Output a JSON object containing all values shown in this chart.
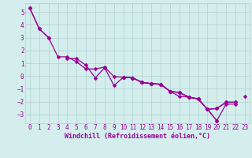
{
  "xlabel": "Windchill (Refroidissement éolien,°C)",
  "bg_color": "#d4eeed",
  "grid_color": "#aecfcd",
  "line_color": "#990099",
  "axis_color": "#990099",
  "xlim": [
    -0.5,
    23.5
  ],
  "ylim": [
    -3.7,
    5.7
  ],
  "xticks": [
    0,
    1,
    2,
    3,
    4,
    5,
    6,
    7,
    8,
    9,
    10,
    11,
    12,
    13,
    14,
    15,
    16,
    17,
    18,
    19,
    20,
    21,
    22,
    23
  ],
  "yticks": [
    -3,
    -2,
    -1,
    0,
    1,
    2,
    3,
    4,
    5
  ],
  "series": [
    [
      5.3,
      3.7,
      3.0,
      null,
      null,
      null,
      null,
      null,
      null,
      null,
      null,
      null,
      null,
      null,
      null,
      null,
      null,
      null,
      null,
      null,
      null,
      null,
      null,
      null
    ],
    [
      5.3,
      3.7,
      3.0,
      1.5,
      1.5,
      1.1,
      0.55,
      0.55,
      0.7,
      -0.05,
      -0.1,
      -0.15,
      -0.5,
      -0.6,
      -0.65,
      -1.2,
      -1.3,
      -1.65,
      -1.8,
      -2.6,
      -2.55,
      -2.05,
      -2.05,
      null
    ],
    [
      null,
      null,
      null,
      null,
      1.4,
      1.35,
      0.85,
      -0.15,
      0.65,
      -0.75,
      -0.1,
      -0.15,
      -0.5,
      -0.6,
      -0.65,
      -1.2,
      -1.6,
      -1.65,
      -1.8,
      -2.6,
      -2.55,
      -2.05,
      -2.05,
      null
    ],
    [
      null,
      null,
      null,
      null,
      null,
      null,
      null,
      null,
      null,
      null,
      -0.1,
      -0.15,
      -0.5,
      -0.6,
      -0.65,
      -1.2,
      -1.3,
      -1.65,
      -1.8,
      -2.6,
      -3.5,
      null,
      null,
      -1.6
    ],
    [
      null,
      null,
      null,
      null,
      null,
      null,
      null,
      null,
      null,
      null,
      -0.1,
      -0.15,
      -0.5,
      -0.6,
      -0.65,
      -1.2,
      -1.3,
      -1.65,
      -1.8,
      -2.6,
      -3.5,
      -2.2,
      -2.2,
      null
    ]
  ],
  "tick_fontsize": 5.5,
  "xlabel_fontsize": 6.0,
  "linewidth": 0.9,
  "markersize": 2.5
}
